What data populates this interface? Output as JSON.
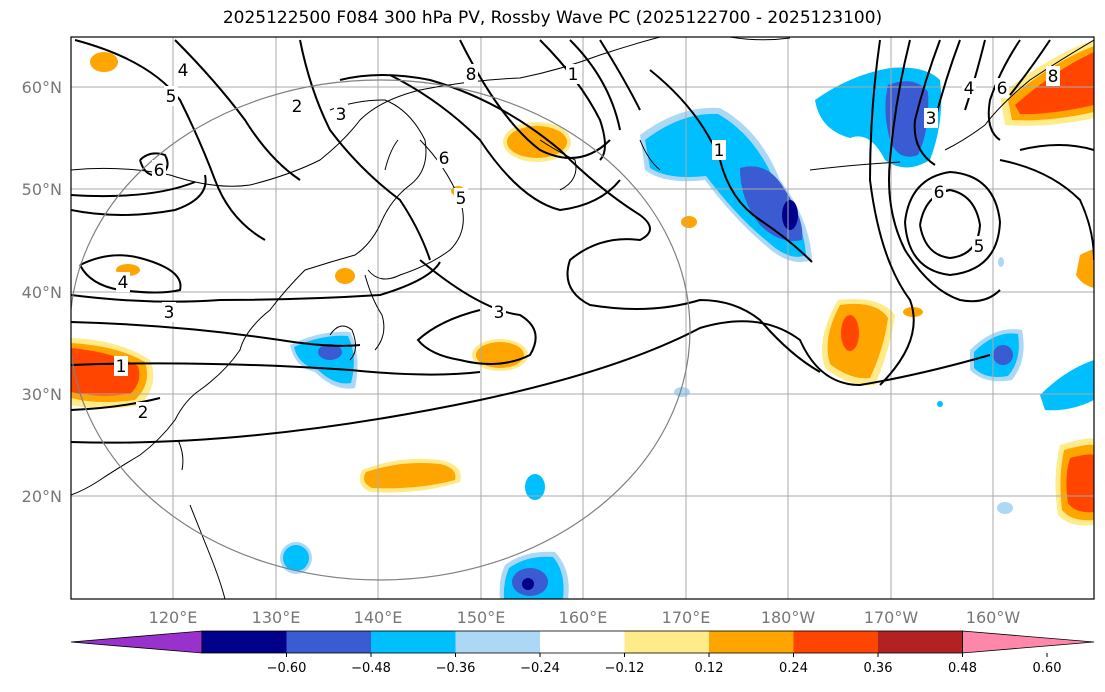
{
  "title": "2025122500 F084 300 hPa PV, Rossby Wave PC (2025122700 - 2025123100)",
  "map": {
    "lat_labels": [
      "60°N",
      "50°N",
      "40°N",
      "30°N",
      "20°N"
    ],
    "lon_labels": [
      "120°E",
      "130°E",
      "140°E",
      "150°E",
      "160°E",
      "170°E",
      "180°W",
      "170°W",
      "160°W"
    ],
    "contour_labels": [
      "5",
      "4",
      "2",
      "3",
      "6",
      "8",
      "1",
      "6",
      "5",
      "3",
      "1",
      "3",
      "2",
      "4",
      "1",
      "3",
      "6",
      "5",
      "4",
      "6",
      "8"
    ]
  },
  "colorbar": {
    "colors": [
      "#9932cc",
      "#00008b",
      "#3a5bd1",
      "#00bfff",
      "#add8f5",
      "#ffffff",
      "#ffeb8a",
      "#ffa500",
      "#ff4500",
      "#b22222",
      "#ff88aa"
    ],
    "tick_labels": [
      "−0.60",
      "−0.48",
      "−0.36",
      "−0.24",
      "−0.12",
      "0.12",
      "0.24",
      "0.36",
      "0.48",
      "0.60"
    ]
  }
}
